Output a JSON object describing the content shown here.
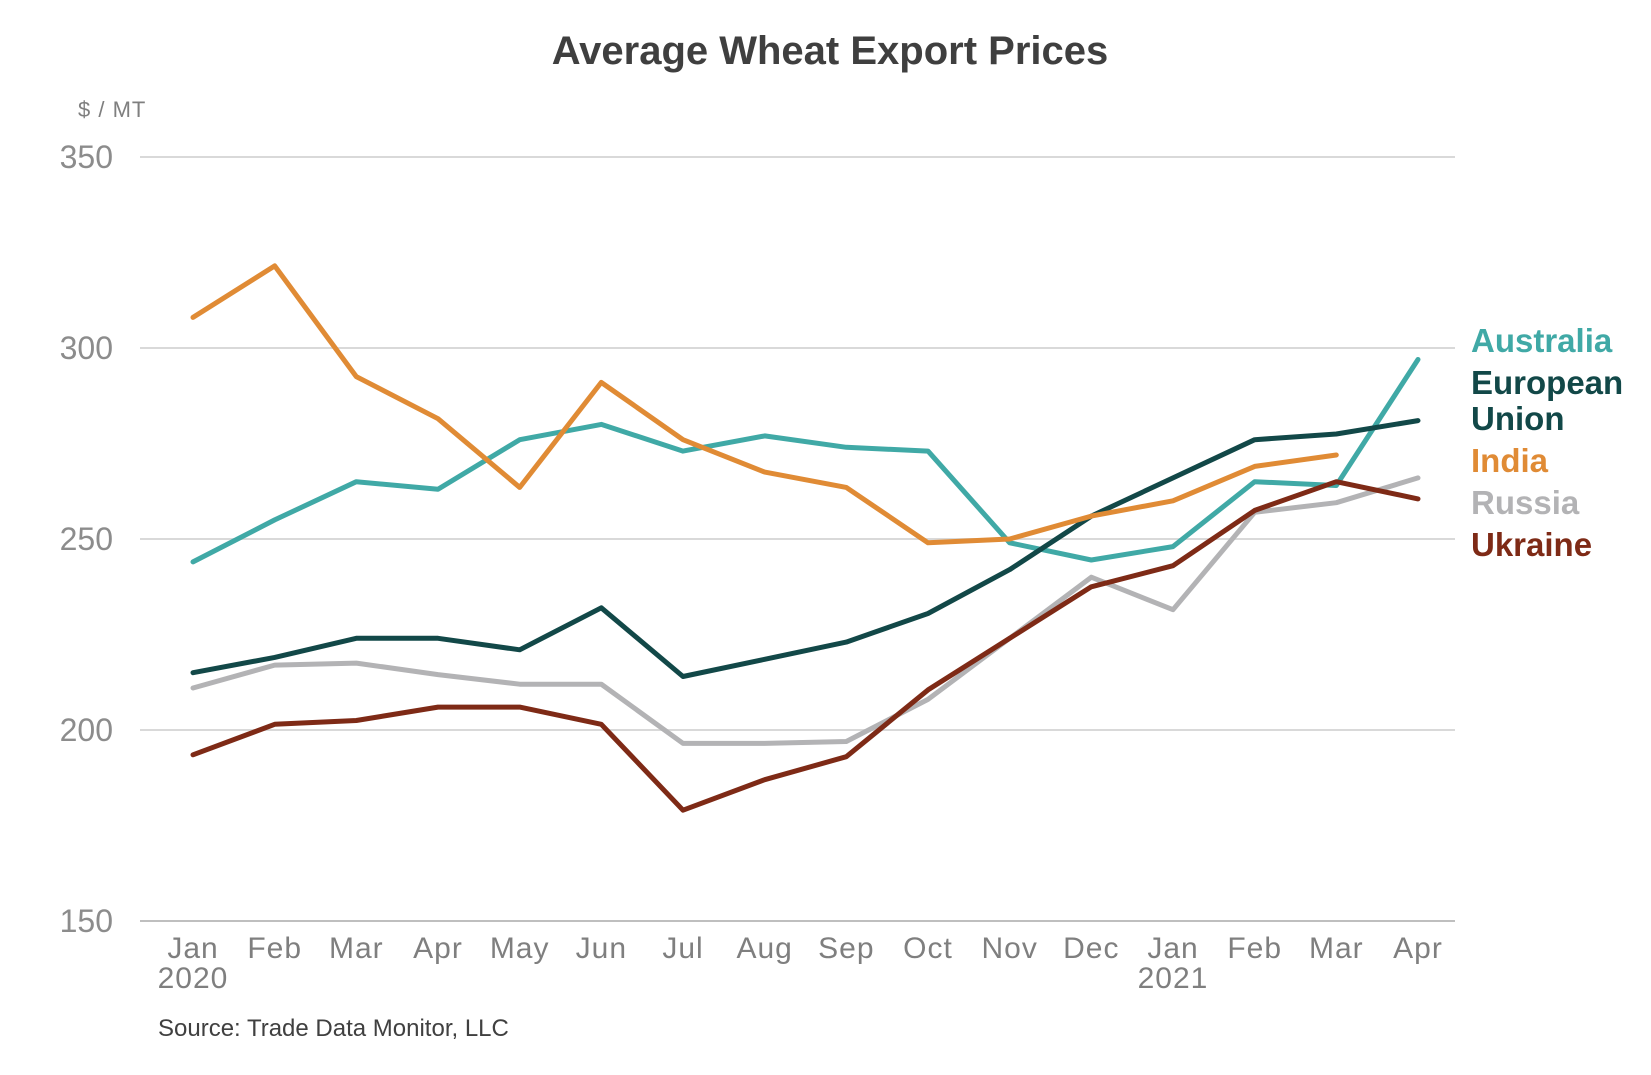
{
  "chart_data": {
    "type": "line",
    "title": "Average Wheat Export Prices",
    "ylabel": "$ / MT",
    "xlabel": "",
    "ylim": [
      150,
      350
    ],
    "yticks": [
      150,
      200,
      250,
      300,
      350
    ],
    "grid": true,
    "legend_position": "right",
    "categories": [
      "Jan",
      "Feb",
      "Mar",
      "Apr",
      "May",
      "Jun",
      "Jul",
      "Aug",
      "Sep",
      "Oct",
      "Nov",
      "Dec",
      "Jan",
      "Feb",
      "Mar",
      "Apr"
    ],
    "year_labels": [
      {
        "index": 0,
        "label": "2020"
      },
      {
        "index": 12,
        "label": "2021"
      }
    ],
    "series": [
      {
        "name": "Australia",
        "color": "#40a9a6",
        "legend_lines": [
          "Australia"
        ],
        "values": [
          244,
          255,
          265,
          263,
          276,
          280,
          273,
          277,
          274,
          273,
          249,
          244.5,
          248,
          265,
          264,
          297
        ]
      },
      {
        "name": "European Union",
        "color": "#124848",
        "legend_lines": [
          "European",
          "Union"
        ],
        "values": [
          215,
          219,
          224,
          224,
          221,
          232,
          214,
          218.5,
          223,
          230.5,
          242,
          256,
          266,
          276,
          277.5,
          281
        ]
      },
      {
        "name": "India",
        "color": "#e08b35",
        "legend_lines": [
          "India"
        ],
        "values": [
          308,
          321.5,
          292.5,
          281.5,
          263.5,
          291,
          276,
          267.5,
          263.5,
          249,
          250,
          256,
          260,
          269,
          272,
          null
        ]
      },
      {
        "name": "Russia",
        "color": "#b3b3b5",
        "legend_lines": [
          "Russia"
        ],
        "values": [
          211,
          217,
          217.5,
          214.5,
          212,
          212,
          196.5,
          196.5,
          197,
          208,
          224,
          240,
          231.5,
          257,
          259.5,
          266
        ]
      },
      {
        "name": "Ukraine",
        "color": "#7e2a16",
        "legend_lines": [
          "Ukraine"
        ],
        "values": [
          193.5,
          201.5,
          202.5,
          206,
          206,
          201.5,
          179,
          187,
          193,
          210.5,
          224,
          237.5,
          243,
          257.5,
          265,
          260.5
        ]
      }
    ],
    "source": "Source: Trade Data Monitor, LLC"
  }
}
